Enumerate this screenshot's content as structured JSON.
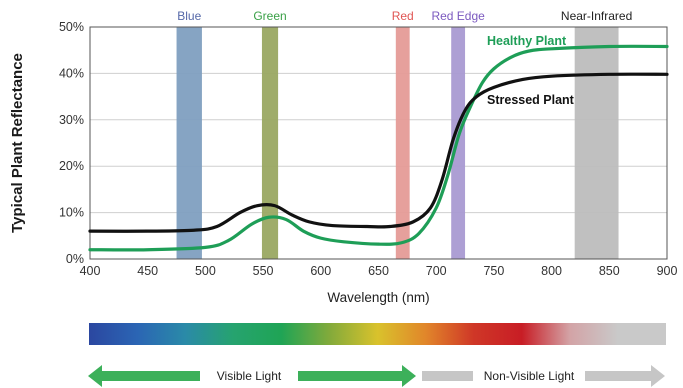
{
  "chart_data": {
    "type": "line",
    "title": "",
    "xlabel": "Wavelength (nm)",
    "ylabel": "Typical Plant Reflectance",
    "xlim": [
      400,
      900
    ],
    "ylim": [
      0,
      50
    ],
    "xticks": [
      400,
      450,
      500,
      550,
      600,
      650,
      700,
      750,
      800,
      850,
      900
    ],
    "yticks": [
      0,
      10,
      20,
      30,
      40,
      50
    ],
    "ytick_labels": [
      "0%",
      "10%",
      "20%",
      "30%",
      "40%",
      "50%"
    ],
    "grid": "horizontal",
    "bands": [
      {
        "label": "Blue",
        "x0": 475,
        "x1": 497,
        "color": "#7f9fc0",
        "text_color": "#5568a8"
      },
      {
        "label": "Green",
        "x0": 549,
        "x1": 563,
        "color": "#9aa862",
        "text_color": "#3aa047"
      },
      {
        "label": "Red",
        "x0": 665,
        "x1": 677,
        "color": "#e59b97",
        "text_color": "#e05553"
      },
      {
        "label": "Red Edge",
        "x0": 713,
        "x1": 725,
        "color": "#a99ad2",
        "text_color": "#7b59bf"
      },
      {
        "label": "Near-Infrared",
        "x0": 820,
        "x1": 858,
        "color": "#bdbdbd",
        "text_color": "#222222"
      }
    ],
    "series": [
      {
        "name": "Healthy Plant",
        "color": "#1e9e57",
        "points": [
          [
            400,
            2
          ],
          [
            450,
            2
          ],
          [
            500,
            2.5
          ],
          [
            520,
            4
          ],
          [
            540,
            7.5
          ],
          [
            555,
            9
          ],
          [
            570,
            8.5
          ],
          [
            585,
            6
          ],
          [
            600,
            4.5
          ],
          [
            620,
            3.7
          ],
          [
            650,
            3.2
          ],
          [
            670,
            3.5
          ],
          [
            685,
            5.5
          ],
          [
            700,
            11
          ],
          [
            710,
            18
          ],
          [
            720,
            27
          ],
          [
            730,
            33
          ],
          [
            740,
            38
          ],
          [
            750,
            41
          ],
          [
            765,
            43.5
          ],
          [
            780,
            44.8
          ],
          [
            800,
            45.3
          ],
          [
            850,
            45.8
          ],
          [
            900,
            45.8
          ]
        ]
      },
      {
        "name": "Stressed Plant",
        "color": "#111111",
        "points": [
          [
            400,
            6
          ],
          [
            450,
            6
          ],
          [
            490,
            6.2
          ],
          [
            510,
            7
          ],
          [
            530,
            10
          ],
          [
            545,
            11.5
          ],
          [
            560,
            11.5
          ],
          [
            575,
            9.5
          ],
          [
            590,
            8
          ],
          [
            610,
            7.2
          ],
          [
            640,
            7
          ],
          [
            660,
            7
          ],
          [
            680,
            8
          ],
          [
            695,
            11
          ],
          [
            705,
            17
          ],
          [
            715,
            26
          ],
          [
            725,
            32
          ],
          [
            735,
            35
          ],
          [
            750,
            37
          ],
          [
            775,
            38.7
          ],
          [
            800,
            39.4
          ],
          [
            850,
            39.8
          ],
          [
            900,
            39.8
          ]
        ]
      }
    ]
  },
  "spectrum_bar": {
    "colors": [
      "#2b47a0",
      "#2b65b4",
      "#2a8aa8",
      "#26a36f",
      "#1fa455",
      "#82aa3b",
      "#d9c22c",
      "#e1862a",
      "#cf3727",
      "#c81d25",
      "#d3a3a6",
      "#c9c9c9",
      "#c9c9c9"
    ]
  },
  "arrows": {
    "visible_label": "Visible Light",
    "visible_color": "#3cb05a",
    "nonvisible_label": "Non-Visible Light",
    "nonvisible_color": "#c6c6c6"
  }
}
